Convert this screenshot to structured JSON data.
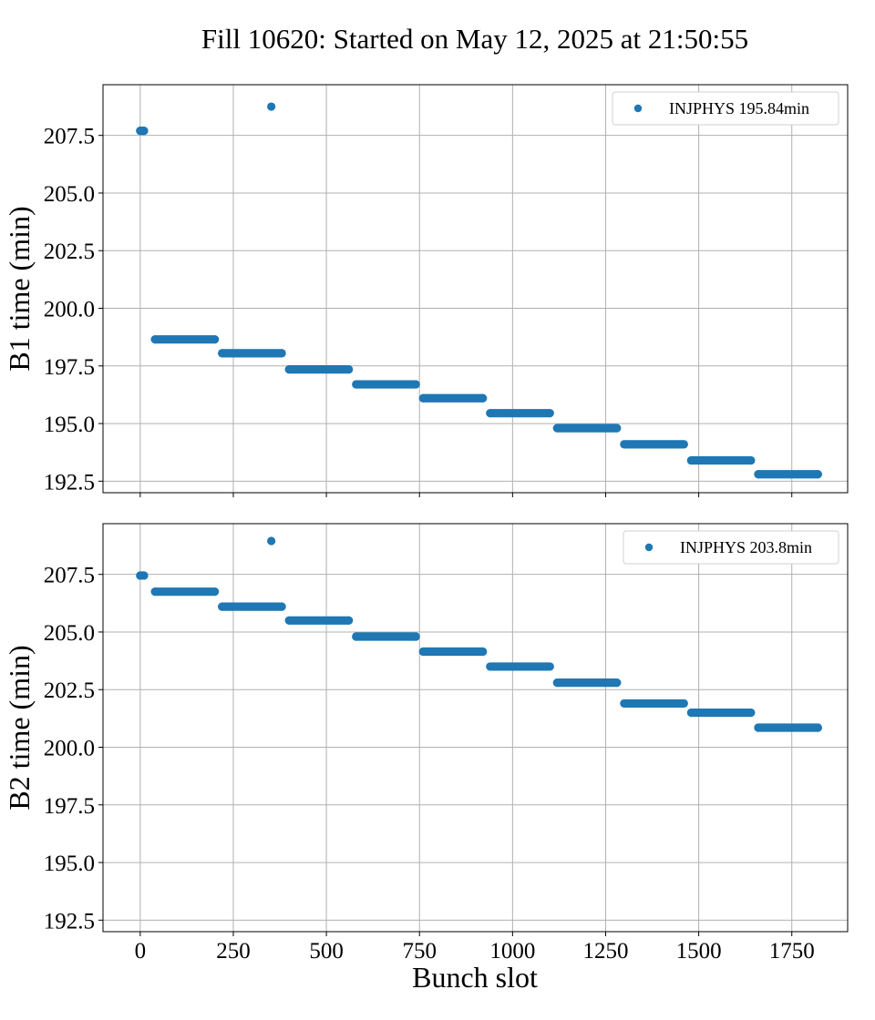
{
  "title": "Fill 10620: Started on May 12, 2025 at 21:50:55",
  "colors": {
    "series": "#1f77b4",
    "grid": "#b0b0b0"
  },
  "chart_data": [
    {
      "type": "scatter",
      "xlabel": "",
      "ylabel": "B1 time (min)",
      "xlim": [
        -100,
        1900
      ],
      "ylim": [
        192.0,
        209.7
      ],
      "xticks": [
        0,
        250,
        500,
        750,
        1000,
        1250,
        1500,
        1750
      ],
      "xticklabels": [],
      "yticks": [
        192.5,
        195.0,
        197.5,
        200.0,
        202.5,
        205.0,
        207.5
      ],
      "yticklabels": [
        "192.5",
        "195.0",
        "197.5",
        "200.0",
        "202.5",
        "205.0",
        "207.5"
      ],
      "grid": true,
      "legend_position": "top-right",
      "series": [
        {
          "name": "INJPHYS 195.84min",
          "points": [
            {
              "x": 0,
              "y": 207.7
            },
            {
              "x": 10,
              "y": 207.7
            },
            {
              "x": 352,
              "y": 208.75
            },
            {
              "x": 40,
              "y": 198.65
            },
            {
              "x": 200,
              "y": 198.65
            },
            {
              "x": 220,
              "y": 198.05
            },
            {
              "x": 380,
              "y": 198.05
            },
            {
              "x": 400,
              "y": 197.35
            },
            {
              "x": 560,
              "y": 197.35
            },
            {
              "x": 580,
              "y": 196.7
            },
            {
              "x": 740,
              "y": 196.7
            },
            {
              "x": 760,
              "y": 196.1
            },
            {
              "x": 920,
              "y": 196.1
            },
            {
              "x": 940,
              "y": 195.45
            },
            {
              "x": 1100,
              "y": 195.45
            },
            {
              "x": 1120,
              "y": 194.8
            },
            {
              "x": 1280,
              "y": 194.8
            },
            {
              "x": 1300,
              "y": 194.1
            },
            {
              "x": 1460,
              "y": 194.1
            },
            {
              "x": 1480,
              "y": 193.4
            },
            {
              "x": 1640,
              "y": 193.4
            },
            {
              "x": 1660,
              "y": 192.8
            },
            {
              "x": 1820,
              "y": 192.8
            }
          ]
        }
      ]
    },
    {
      "type": "scatter",
      "xlabel": "Bunch slot",
      "ylabel": "B2 time (min)",
      "xlim": [
        -100,
        1900
      ],
      "ylim": [
        192.0,
        209.7
      ],
      "xticks": [
        0,
        250,
        500,
        750,
        1000,
        1250,
        1500,
        1750
      ],
      "xticklabels": [
        "0",
        "250",
        "500",
        "750",
        "1000",
        "1250",
        "1500",
        "1750"
      ],
      "yticks": [
        192.5,
        195.0,
        197.5,
        200.0,
        202.5,
        205.0,
        207.5
      ],
      "yticklabels": [
        "192.5",
        "195.0",
        "197.5",
        "200.0",
        "202.5",
        "205.0",
        "207.5"
      ],
      "grid": true,
      "legend_position": "top-right",
      "series": [
        {
          "name": "INJPHYS 203.8min",
          "points": [
            {
              "x": 0,
              "y": 207.45
            },
            {
              "x": 10,
              "y": 207.45
            },
            {
              "x": 352,
              "y": 208.95
            },
            {
              "x": 40,
              "y": 206.75
            },
            {
              "x": 200,
              "y": 206.75
            },
            {
              "x": 220,
              "y": 206.1
            },
            {
              "x": 380,
              "y": 206.1
            },
            {
              "x": 400,
              "y": 205.5
            },
            {
              "x": 560,
              "y": 205.5
            },
            {
              "x": 580,
              "y": 204.8
            },
            {
              "x": 740,
              "y": 204.8
            },
            {
              "x": 760,
              "y": 204.15
            },
            {
              "x": 920,
              "y": 204.15
            },
            {
              "x": 940,
              "y": 203.5
            },
            {
              "x": 1100,
              "y": 203.5
            },
            {
              "x": 1120,
              "y": 202.8
            },
            {
              "x": 1280,
              "y": 202.8
            },
            {
              "x": 1300,
              "y": 201.9
            },
            {
              "x": 1460,
              "y": 201.9
            },
            {
              "x": 1480,
              "y": 201.5
            },
            {
              "x": 1640,
              "y": 201.5
            },
            {
              "x": 1660,
              "y": 200.85
            },
            {
              "x": 1820,
              "y": 200.85
            }
          ]
        }
      ]
    }
  ]
}
